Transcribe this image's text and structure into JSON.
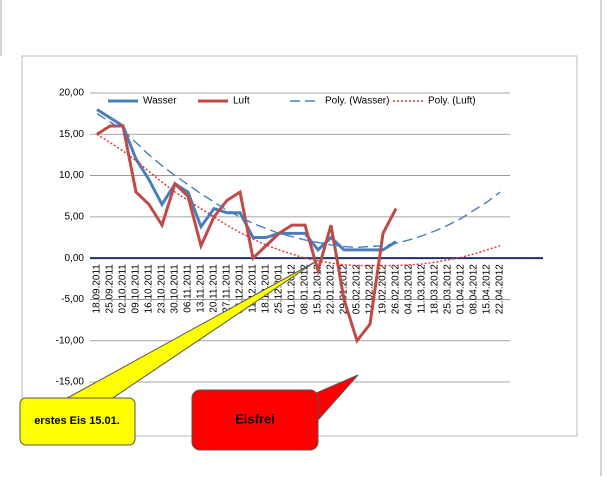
{
  "chart_data": {
    "type": "line",
    "categories": [
      "18.09.2011",
      "25.09.2011",
      "02.10.2011",
      "09.10.2011",
      "16.10.2011",
      "23.10.2011",
      "30.10.2011",
      "06.11.2011",
      "13.11.2011",
      "20.11.2011",
      "27.11.2011",
      "04.12.2011",
      "11.12.2011",
      "18.12.2011",
      "25.12.2011",
      "01.01.2012",
      "08.01.2012",
      "15.01.2012",
      "22.01.2012",
      "29.01.2012",
      "05.02.2012",
      "12.02.2012",
      "19.02.2012",
      "26.02.2012",
      "04.03.2012",
      "11.03.2012",
      "18.03.2012",
      "25.03.2012",
      "01.04.2012",
      "08.04.2012",
      "15.04.2012",
      "22.04.2012"
    ],
    "series": [
      {
        "name": "Wasser",
        "color": "#4a7ebb",
        "dash": "solid",
        "values": [
          18,
          17,
          16,
          12,
          9.5,
          6.5,
          9,
          8,
          3.8,
          6,
          5.5,
          5.5,
          2.5,
          2.5,
          3,
          3,
          3,
          1,
          2.5,
          1,
          1,
          1,
          1,
          2,
          null,
          null,
          null,
          null,
          null,
          null,
          null,
          null
        ]
      },
      {
        "name": "Luft",
        "color": "#be4b48",
        "dash": "solid",
        "values": [
          15,
          16,
          16,
          8,
          6.5,
          4,
          9,
          7.5,
          1.5,
          5,
          7,
          8,
          0,
          1.5,
          3,
          4,
          4,
          -1.5,
          4,
          -5,
          -10,
          -8,
          3,
          6,
          null,
          null,
          null,
          null,
          null,
          null,
          null,
          null
        ]
      },
      {
        "name": "Poly. (Wasser)",
        "color": "#4a7ebb",
        "dash": "dashed",
        "values": [
          17.5,
          16.5,
          15.5,
          14,
          12.5,
          11.2,
          10,
          8.9,
          7.8,
          6.8,
          5.8,
          5,
          4.2,
          3.6,
          3,
          2.6,
          2.2,
          1.9,
          1.6,
          1.4,
          1.3,
          1.4,
          1.5,
          1.8,
          2.2,
          2.7,
          3.3,
          4,
          4.8,
          5.8,
          6.8,
          8
        ]
      },
      {
        "name": "Poly. (Luft)",
        "color": "#e03030",
        "dash": "dotted",
        "values": [
          15,
          14,
          13,
          11.8,
          10.5,
          9.2,
          8,
          7,
          6,
          5,
          4,
          3.1,
          2.3,
          1.6,
          1,
          0.5,
          0,
          -0.3,
          -0.6,
          -0.8,
          -0.9,
          -0.9,
          -0.9,
          -0.9,
          -0.8,
          -0.7,
          -0.5,
          -0.2,
          0.1,
          0.5,
          1,
          1.5
        ]
      }
    ],
    "ylim": [
      -15,
      20
    ],
    "yticks": [
      {
        "value": 20,
        "label": "20,00"
      },
      {
        "value": 15,
        "label": "15,00"
      },
      {
        "value": 10,
        "label": "10,00"
      },
      {
        "value": 5,
        "label": "5,00"
      },
      {
        "value": 0,
        "label": "0,00"
      },
      {
        "value": -5,
        "label": "-5,00"
      },
      {
        "value": -10,
        "label": "-10,00"
      },
      {
        "value": -15,
        "label": "-15,00"
      }
    ],
    "grid": true,
    "legend": "top",
    "annotations": [
      "erstes Eis 15.01.",
      "Eisfrei"
    ]
  }
}
